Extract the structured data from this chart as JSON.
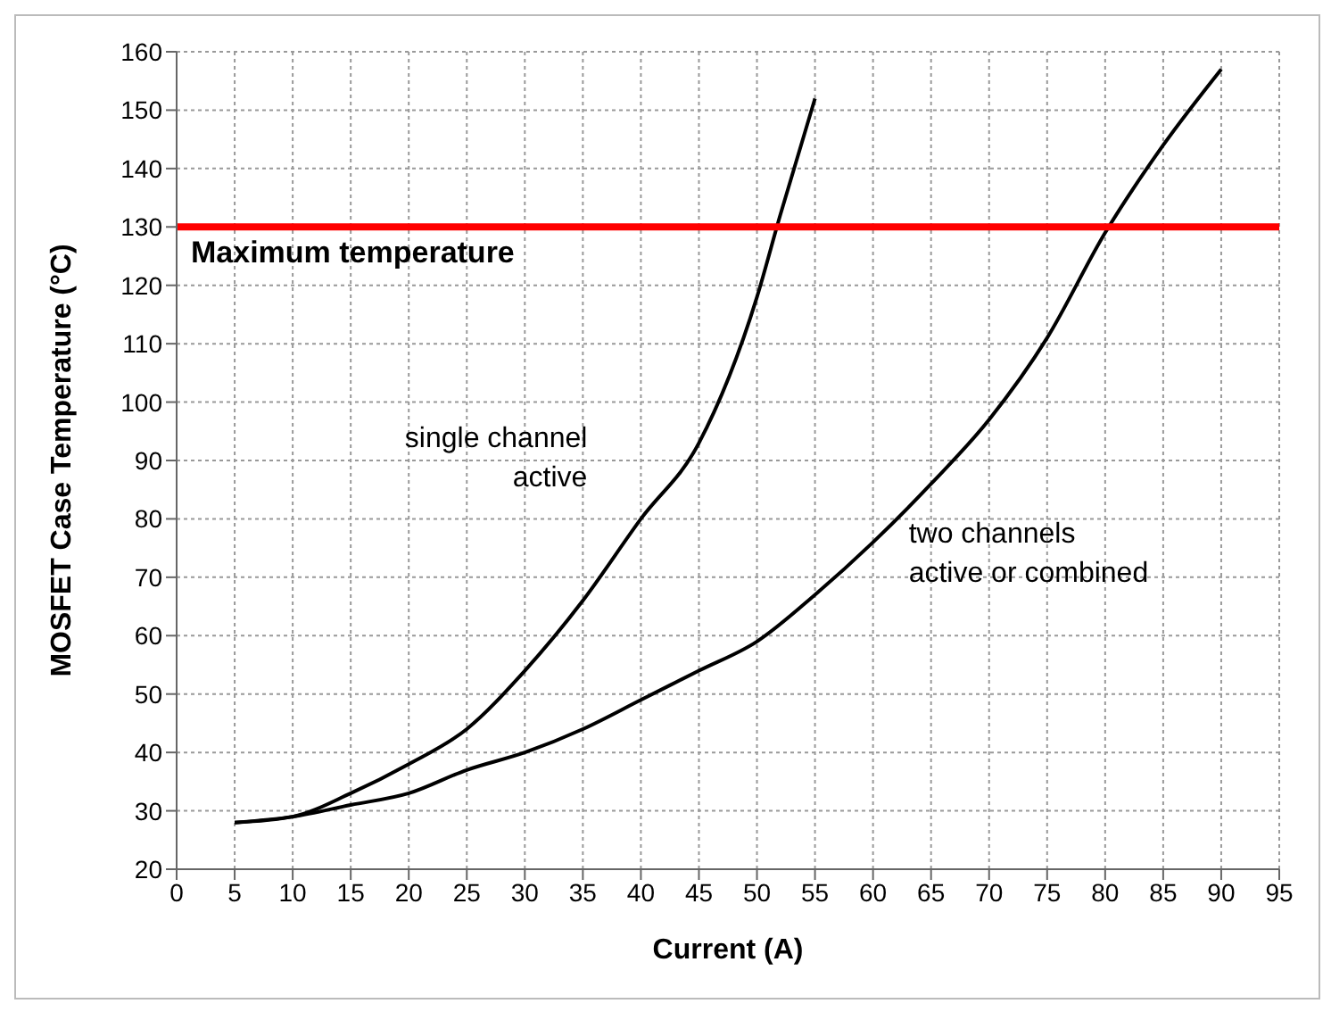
{
  "chart_data": {
    "type": "line",
    "xlabel": "Current (A)",
    "ylabel": "MOSFET Case Temperature (°C)",
    "xlim": [
      0,
      95
    ],
    "xticks": [
      0,
      5,
      10,
      15,
      20,
      25,
      30,
      35,
      40,
      45,
      50,
      55,
      60,
      65,
      70,
      75,
      80,
      85,
      90,
      95
    ],
    "ylim": [
      20,
      160
    ],
    "yticks": [
      20,
      30,
      40,
      50,
      60,
      70,
      80,
      90,
      100,
      110,
      120,
      130,
      140,
      150,
      160
    ],
    "grid": true,
    "marker": "none",
    "line_style": "solid",
    "series": [
      {
        "name": "single channel\nactive",
        "color": "#000000",
        "x": [
          5,
          10,
          15,
          20,
          25,
          30,
          35,
          40,
          45,
          50,
          52,
          55
        ],
        "values": [
          28,
          29,
          33,
          38,
          44,
          54,
          66,
          80,
          93,
          118,
          132,
          152
        ]
      },
      {
        "name": "two channels\nactive or combined",
        "color": "#000000",
        "x": [
          5,
          10,
          15,
          20,
          25,
          30,
          35,
          40,
          45,
          50,
          55,
          60,
          65,
          70,
          75,
          80,
          85,
          90
        ],
        "values": [
          28,
          29,
          31,
          33,
          37,
          40,
          44,
          49,
          54,
          59,
          67,
          76,
          86,
          97,
          111,
          129,
          144,
          157
        ]
      }
    ],
    "ref_lines": [
      {
        "axis": "y",
        "value": 130,
        "label": "Maximum temperature",
        "color": "#ff0000"
      }
    ]
  }
}
